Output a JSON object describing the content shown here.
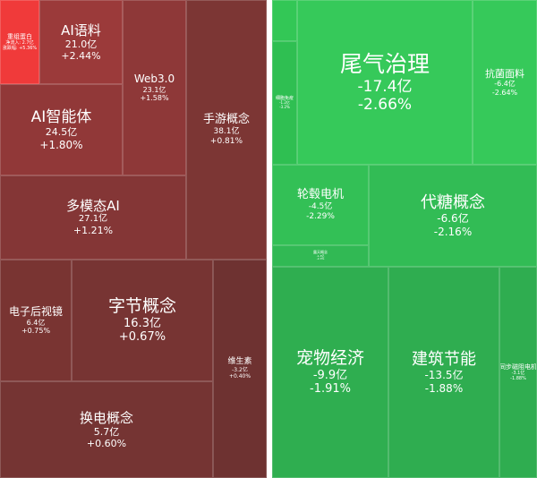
{
  "chart_data": {
    "type": "treemap",
    "value_unit": "亿",
    "panels": [
      {
        "name": "",
        "tiles": [
          {
            "label": "重组蛋白",
            "value": "",
            "change": "",
            "extra": [
              "净流入: 2.7亿",
              "涨跌幅: +5.36%"
            ],
            "color": "#f03a3a"
          },
          {
            "label": "AI语料",
            "value": "21.0亿",
            "change": "+2.44%",
            "color": "#9b3a3a"
          },
          {
            "label": "Web3.0",
            "value": "23.1亿",
            "change": "+1.58%",
            "color": "#8e3838"
          },
          {
            "label": "AI智能体",
            "value": "24.5亿",
            "change": "+1.80%",
            "color": "#913838"
          },
          {
            "label": "手游概念",
            "value": "38.1亿",
            "change": "+0.81%",
            "color": "#7c3634"
          },
          {
            "label": "多模态AI",
            "value": "27.1亿",
            "change": "+1.21%",
            "color": "#843636"
          },
          {
            "label": "电子后视镜",
            "value": "6.4亿",
            "change": "+0.75%",
            "color": "#793432"
          },
          {
            "label": "字节概念",
            "value": "16.3亿",
            "change": "+0.67%",
            "color": "#773433"
          },
          {
            "label": "维生素",
            "value": "-3.2亿",
            "change": "+0.40%",
            "color": "#6e3231"
          },
          {
            "label": "换电概念",
            "value": "5.7亿",
            "change": "+0.60%",
            "color": "#753433"
          }
        ]
      },
      {
        "name": "",
        "tiles": [
          {
            "label": "",
            "value": "",
            "change": "",
            "color": "#33c756"
          },
          {
            "label": "细胞免疫",
            "value": "",
            "change": "",
            "extra": [
              "-1.2亿",
              "-3.2%"
            ],
            "color": "#2fbf52"
          },
          {
            "label": "尾气治理",
            "value": "-17.4亿",
            "change": "-2.66%",
            "color": "#36c95a"
          },
          {
            "label": "抗菌面料",
            "value": "-6.4亿",
            "change": "-2.64%",
            "color": "#36c95a"
          },
          {
            "label": "轮毂电机",
            "value": "-4.5亿",
            "change": "-2.29%",
            "color": "#33c056"
          },
          {
            "label": "代糖概念",
            "value": "-6.6亿",
            "change": "-2.16%",
            "color": "#32bc55"
          },
          {
            "label": "露天概念",
            "value": "",
            "change": "",
            "extra": [
              "-1.3亿",
              "-2.3%"
            ],
            "color": "#31b954"
          },
          {
            "label": "宠物经济",
            "value": "-9.9亿",
            "change": "-1.91%",
            "color": "#2fae50"
          },
          {
            "label": "建筑节能",
            "value": "-13.5亿",
            "change": "-1.88%",
            "color": "#2fad50"
          },
          {
            "label": "同步磁阻电机",
            "value": "-3.1亿",
            "change": "-1.88%",
            "color": "#2fad50"
          }
        ]
      }
    ]
  }
}
